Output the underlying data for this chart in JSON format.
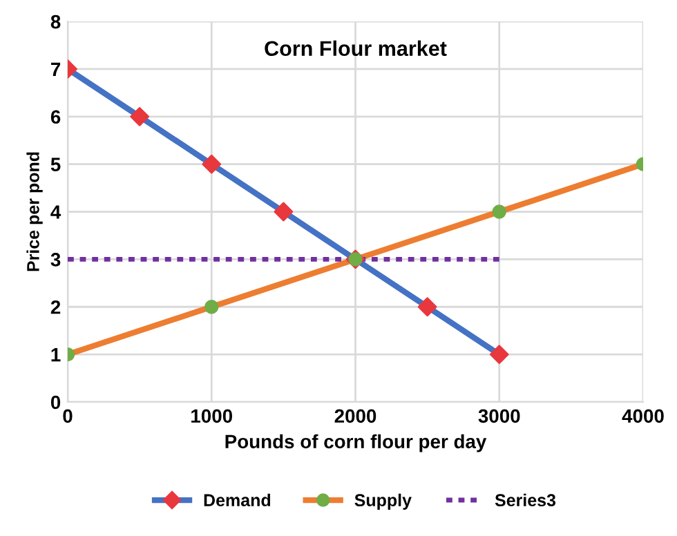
{
  "chart_data": {
    "type": "line",
    "title": "Corn Flour market",
    "xlabel": "Pounds of corn flour per day",
    "ylabel": "Price per pond",
    "xlim": [
      0,
      4000
    ],
    "xticks": [
      0,
      1000,
      2000,
      3000,
      4000
    ],
    "ylim": [
      0,
      8
    ],
    "yticks": [
      0,
      1,
      2,
      3,
      4,
      5,
      6,
      7,
      8
    ],
    "grid": true,
    "legend": "bottom",
    "series": [
      {
        "name": "Demand",
        "color": "#4472c4",
        "marker": "diamond",
        "colors": [
          "#e8383d",
          "#e8383d",
          "#e8383d",
          "#e8383d",
          "#e8383d",
          "#e8383d",
          "#e8383d"
        ],
        "line_style": "solid",
        "x": [
          0,
          500,
          1000,
          1500,
          2000,
          2500,
          3000
        ],
        "values": [
          7,
          6,
          5,
          4,
          3,
          2,
          1
        ]
      },
      {
        "name": "Supply",
        "color": "#ed7d31",
        "marker": "circle",
        "colors": [
          "#70ad47",
          "#70ad47",
          "#70ad47",
          "#70ad47",
          "#70ad47"
        ],
        "line_style": "solid",
        "x": [
          0,
          1000,
          2000,
          3000,
          4000
        ],
        "values": [
          1,
          2,
          3,
          4,
          5
        ]
      },
      {
        "name": "Series3",
        "color": "#7030a0",
        "marker": "none",
        "line_style": "dotted",
        "x": [
          0,
          3000
        ],
        "values": [
          3,
          3
        ]
      }
    ]
  }
}
